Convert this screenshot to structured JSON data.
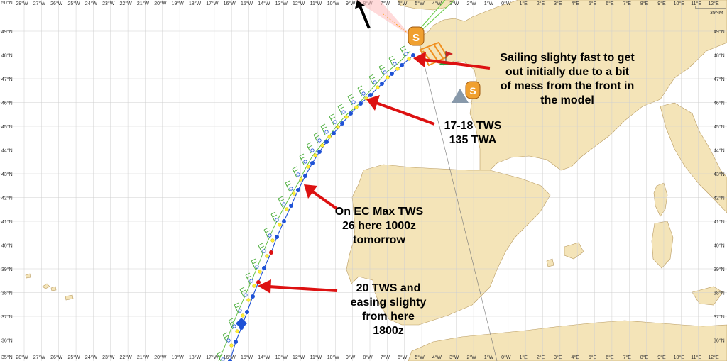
{
  "map": {
    "longitude_labels": [
      "28°W",
      "27°W",
      "26°W",
      "25°W",
      "24°W",
      "23°W",
      "22°W",
      "21°W",
      "20°W",
      "19°W",
      "18°W",
      "17°W",
      "16°W",
      "15°W",
      "14°W",
      "13°W",
      "12°W",
      "11°W",
      "10°W",
      "9°W",
      "8°W",
      "7°W",
      "6°W",
      "5°W",
      "4°W",
      "3°W",
      "2°W",
      "1°W",
      "0°W",
      "1°E",
      "2°E",
      "3°E",
      "4°E",
      "5°E",
      "6°E",
      "7°E",
      "8°E",
      "9°E",
      "10°E",
      "11°E",
      "12°E"
    ],
    "latitude_labels": [
      "49°N",
      "48°N",
      "47°N",
      "46°N",
      "45°N",
      "44°N",
      "43°N",
      "42°N",
      "41°N",
      "40°N",
      "39°N",
      "38°N",
      "37°N",
      "36°N"
    ],
    "corner_label": "50°N",
    "bottom_corner_label": "35°N",
    "scale_label": "39NM",
    "colors": {
      "sea": "#ffffff",
      "land": "#f4e4b8",
      "grid": "#c8c8c8",
      "route": "#1f52d6",
      "alt_route": "#55bb33",
      "arrow": "#dd1111",
      "waypoint_yellow": "#ffee33",
      "waypoint_blue": "#1f52d6",
      "layline_green": "#66cc44",
      "marker_orange": "#f0a030"
    }
  },
  "annotations": [
    {
      "id": "front",
      "lines": [
        "Sailing slighty fast to get",
        "out initially due to a bit",
        "of mess from the front in",
        "the model"
      ]
    },
    {
      "id": "tws1718",
      "lines": [
        "17-18 TWS",
        "135 TWA"
      ]
    },
    {
      "id": "ecmax",
      "lines": [
        "On EC Max TWS",
        "26 here 1000z",
        "tomorrow"
      ]
    },
    {
      "id": "tws20",
      "lines": [
        "20 TWS and",
        "easing slighty",
        "from here",
        "1800z"
      ]
    }
  ],
  "markers": {
    "waypoint_symbol": "S",
    "icons": [
      "boat-waypoint-icon",
      "flag-icon",
      "north-arrow-icon"
    ]
  }
}
